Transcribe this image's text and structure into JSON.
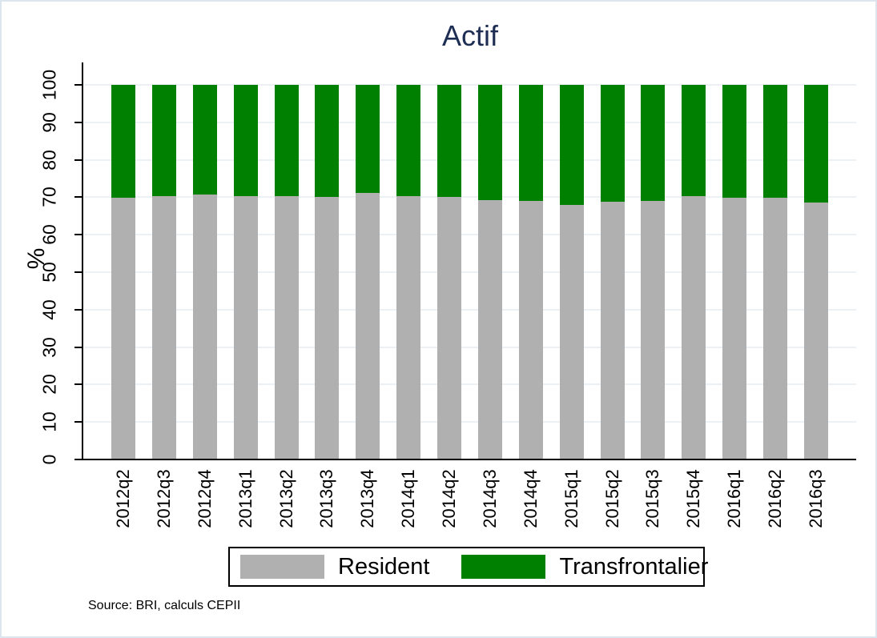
{
  "title": "Actif",
  "source_note": "Source: BRI, calculs CEPII",
  "colors": {
    "resident": "#b0b0b0",
    "transfrontalier": "#008000",
    "title_text": "#1e2d53",
    "gridline": "#ebf1f4",
    "axis": "#000000",
    "figure_border": "#dde6ee"
  },
  "legend": {
    "items": [
      {
        "label": "Resident",
        "color": "#b0b0b0"
      },
      {
        "label": "Transfrontalier",
        "color": "#008000"
      }
    ]
  },
  "chart_data": {
    "type": "bar",
    "stacked": true,
    "percent": true,
    "title": "Actif",
    "ylabel": "%",
    "xlabel": "",
    "ylim": [
      0,
      100
    ],
    "yticks": [
      0,
      10,
      20,
      30,
      40,
      50,
      60,
      70,
      80,
      90,
      100
    ],
    "grid": true,
    "legend_position": "bottom",
    "categories": [
      "2012q2",
      "2012q3",
      "2012q4",
      "2013q1",
      "2013q2",
      "2013q3",
      "2013q4",
      "2014q1",
      "2014q2",
      "2014q3",
      "2014q4",
      "2015q1",
      "2015q2",
      "2015q3",
      "2015q4",
      "2016q1",
      "2016q2",
      "2016q3"
    ],
    "series": [
      {
        "name": "Resident",
        "color": "#b0b0b0",
        "values": [
          69.9,
          70.2,
          70.7,
          70.4,
          70.3,
          70.1,
          71.1,
          70.3,
          70.0,
          69.3,
          69.1,
          68.0,
          68.9,
          69.1,
          70.3,
          69.8,
          69.8,
          68.5
        ]
      },
      {
        "name": "Transfrontalier",
        "color": "#008000",
        "values": [
          30.1,
          29.8,
          29.3,
          29.6,
          29.7,
          29.9,
          28.9,
          29.7,
          30.0,
          30.7,
          30.9,
          32.0,
          31.1,
          30.9,
          29.7,
          30.2,
          30.2,
          31.5
        ]
      }
    ]
  }
}
